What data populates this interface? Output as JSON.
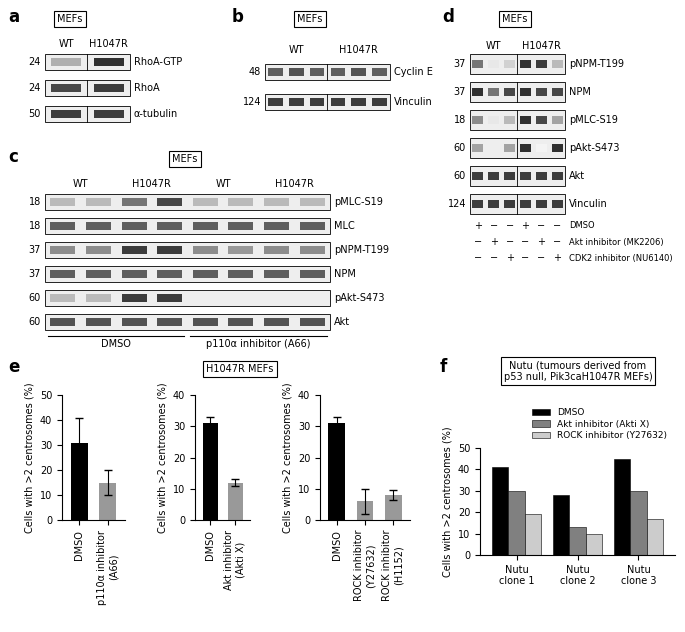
{
  "blots": [
    {
      "letter": "a",
      "cell": "MEFs",
      "lanes": [
        "WT",
        "H1047R"
      ],
      "rows": [
        {
          "mw": "24",
          "name": "RhoA-GTP",
          "bands": [
            0.35,
            0.9
          ]
        },
        {
          "mw": "24",
          "name": "RhoA",
          "bands": [
            0.8,
            0.85
          ]
        },
        {
          "mw": "50",
          "name": "α-tubulin",
          "bands": [
            0.85,
            0.85
          ]
        }
      ]
    },
    {
      "letter": "b",
      "cell": "MEFs",
      "lanes": [
        "WT",
        "H1047R"
      ],
      "rows": [
        {
          "mw": "48",
          "name": "Cyclin E",
          "bands": [
            0.7,
            0.75,
            0.7,
            0.7,
            0.75,
            0.7
          ]
        },
        {
          "mw": "124",
          "name": "Vinculin",
          "bands": [
            0.85,
            0.85,
            0.85,
            0.85,
            0.85,
            0.85
          ]
        }
      ]
    },
    {
      "letter": "c",
      "cell": "MEFs",
      "lanes": [
        "WT",
        "H1047R",
        "WT",
        "H1047R"
      ],
      "rows": [
        {
          "mw": "18",
          "name": "pMLC-S19",
          "bands": [
            0.3,
            0.3,
            0.6,
            0.8,
            0.3,
            0.3,
            0.3,
            0.3
          ]
        },
        {
          "mw": "18",
          "name": "MLC",
          "bands": [
            0.7,
            0.7,
            0.7,
            0.7,
            0.7,
            0.7,
            0.7,
            0.7
          ]
        },
        {
          "mw": "37",
          "name": "pNPM-T199",
          "bands": [
            0.5,
            0.5,
            0.85,
            0.85,
            0.5,
            0.45,
            0.5,
            0.5
          ]
        },
        {
          "mw": "37",
          "name": "NPM",
          "bands": [
            0.7,
            0.7,
            0.7,
            0.7,
            0.7,
            0.7,
            0.7,
            0.7
          ]
        },
        {
          "mw": "60",
          "name": "pAkt-S473",
          "bands": [
            0.3,
            0.3,
            0.85,
            0.85,
            0,
            0,
            0,
            0
          ]
        },
        {
          "mw": "60",
          "name": "Akt",
          "bands": [
            0.75,
            0.75,
            0.75,
            0.75,
            0.75,
            0.75,
            0.75,
            0.75
          ]
        }
      ],
      "conditions": [
        "DMSO",
        "p110α inhibitor (A66)"
      ]
    },
    {
      "letter": "d",
      "cell": "MEFs",
      "lanes": [
        "WT",
        "H1047R"
      ],
      "rows": [
        {
          "mw": "37",
          "name": "pNPM-T199",
          "bands": [
            0.6,
            0.1,
            0.2,
            0.9,
            0.85,
            0.3
          ]
        },
        {
          "mw": "37",
          "name": "NPM",
          "bands": [
            0.9,
            0.6,
            0.8,
            0.9,
            0.8,
            0.8
          ]
        },
        {
          "mw": "18",
          "name": "pMLC-S19",
          "bands": [
            0.5,
            0.1,
            0.3,
            0.9,
            0.8,
            0.4
          ]
        },
        {
          "mw": "60",
          "name": "pAkt-S473",
          "bands": [
            0.4,
            0,
            0.4,
            0.9,
            0.05,
            0.9
          ]
        },
        {
          "mw": "60",
          "name": "Akt",
          "bands": [
            0.85,
            0.85,
            0.85,
            0.85,
            0.85,
            0.85
          ]
        },
        {
          "mw": "124",
          "name": "Vinculin",
          "bands": [
            0.85,
            0.85,
            0.85,
            0.85,
            0.85,
            0.85
          ]
        }
      ],
      "treatments": [
        {
          "label": "DMSO",
          "signs": [
            "+",
            "−",
            "−",
            "+",
            "−",
            "−"
          ]
        },
        {
          "label": "Akt inhibitor (MK2206)",
          "signs": [
            "−",
            "+",
            "−",
            "−",
            "+",
            "−"
          ]
        },
        {
          "label": "CDK2 inhibitor (NU6140)",
          "signs": [
            "−",
            "−",
            "+",
            "−",
            "−",
            "+"
          ]
        }
      ]
    }
  ],
  "panels": [
    {
      "letter": "e",
      "cell": "H1047R MEFs"
    },
    {
      "letter": "f",
      "cell": "Nutu (tumours derived from\np53 null, Pik3caH1047R MEFs)"
    }
  ],
  "chart_data": [
    {
      "type": "bar",
      "categories": [
        "DMSO",
        "p110α inhibitor\n(A66)"
      ],
      "values": [
        31,
        15
      ],
      "errors": [
        10,
        5
      ],
      "colors": [
        "#000000",
        "#999999"
      ],
      "ylabel": "Cells with >2 centrosomes (%)",
      "ylim": [
        0,
        50
      ],
      "yticks": [
        0,
        10,
        20,
        30,
        40,
        50
      ]
    },
    {
      "type": "bar",
      "categories": [
        "DMSO",
        "Akt inhibitor\n(Akti X)"
      ],
      "values": [
        31,
        12
      ],
      "errors": [
        2,
        1
      ],
      "colors": [
        "#000000",
        "#999999"
      ],
      "ylabel": "Cells with >2 centrosomes (%)",
      "ylim": [
        0,
        40
      ],
      "yticks": [
        0,
        10,
        20,
        30,
        40
      ]
    },
    {
      "type": "bar",
      "categories": [
        "DMSO",
        "ROCK inhibitor\n(Y27632)",
        "ROCK inhibitor\n(H1152)"
      ],
      "values": [
        31,
        6,
        8
      ],
      "errors": [
        2,
        4,
        1.5
      ],
      "colors": [
        "#000000",
        "#999999",
        "#999999"
      ],
      "ylabel": "Cells with >2 centrosomes (%)",
      "ylim": [
        0,
        40
      ],
      "yticks": [
        0,
        10,
        20,
        30,
        40
      ]
    },
    {
      "type": "bar",
      "categories": [
        "Nutu\nclone 1",
        "Nutu\nclone 2",
        "Nutu\nclone 3"
      ],
      "series": [
        {
          "name": "DMSO",
          "color": "#000000",
          "values": [
            41,
            28,
            45
          ]
        },
        {
          "name": "Akt inhibitor (Akti X)",
          "color": "#808080",
          "values": [
            30,
            13,
            30
          ]
        },
        {
          "name": "ROCK inhibitor (Y27632)",
          "color": "#cccccc",
          "values": [
            19,
            10,
            17
          ]
        }
      ],
      "ylabel": "Cells with >2 centrosomes (%)",
      "ylim": [
        0,
        50
      ],
      "yticks": [
        0,
        10,
        20,
        30,
        40,
        50
      ],
      "legend": "upper right"
    }
  ]
}
